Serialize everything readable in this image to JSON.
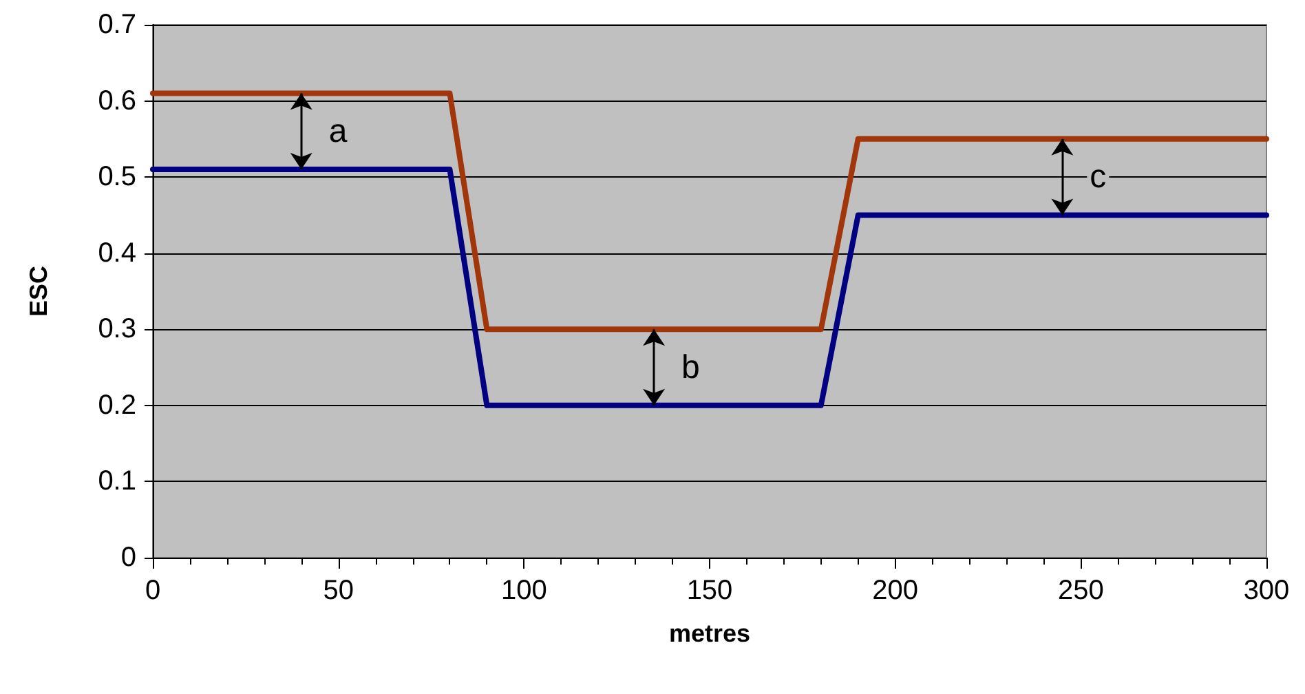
{
  "chart_data": {
    "type": "line",
    "xlabel": "metres",
    "ylabel": "ESC",
    "series": [
      {
        "color": "#a0360a",
        "x": [
          0,
          80,
          90,
          180,
          190,
          300
        ],
        "values": [
          0.61,
          0.61,
          0.3,
          0.3,
          0.55,
          0.55
        ]
      },
      {
        "color": "#000080",
        "x": [
          0,
          80,
          90,
          180,
          190,
          300
        ],
        "values": [
          0.51,
          0.51,
          0.2,
          0.2,
          0.45,
          0.45
        ]
      }
    ],
    "annotations": [
      "a",
      "b",
      "c"
    ],
    "xlim": [
      0,
      300
    ],
    "xticks": [
      0,
      50,
      100,
      150,
      200,
      250,
      300
    ],
    "ylim": [
      0,
      0.7
    ],
    "yticks": [
      0,
      0.1,
      0.2,
      0.3,
      0.4,
      0.5,
      0.6,
      0.7
    ],
    "grid": "y",
    "marker": "none",
    "line_style": "solid"
  }
}
